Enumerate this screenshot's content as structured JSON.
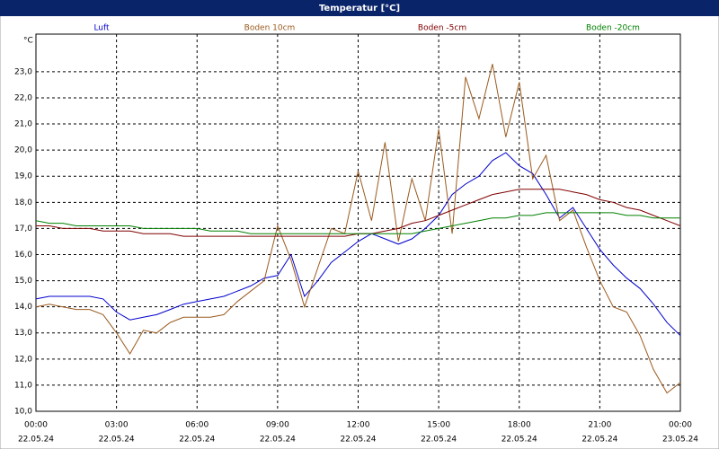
{
  "chart_data": {
    "type": "line",
    "title": "Temperatur [°C]",
    "y_unit": "°C",
    "x": [
      0,
      0.5,
      1,
      1.5,
      2,
      2.5,
      3,
      3.5,
      4,
      4.5,
      5,
      5.5,
      6,
      6.5,
      7,
      7.5,
      8,
      8.5,
      9,
      9.5,
      10,
      10.5,
      11,
      11.5,
      12,
      12.5,
      13,
      13.5,
      14,
      14.5,
      15,
      15.5,
      16,
      16.5,
      17,
      17.5,
      18,
      18.5,
      19,
      19.5,
      20,
      20.5,
      21,
      21.5,
      22,
      22.5,
      23,
      23.5,
      24
    ],
    "xlim": [
      0,
      24
    ],
    "xticks": [
      {
        "value": 0,
        "label": "00:00"
      },
      {
        "value": 3,
        "label": "03:00"
      },
      {
        "value": 6,
        "label": "06:00"
      },
      {
        "value": 9,
        "label": "09:00"
      },
      {
        "value": 12,
        "label": "12:00"
      },
      {
        "value": 15,
        "label": "15:00"
      },
      {
        "value": 18,
        "label": "18:00"
      },
      {
        "value": 21,
        "label": "21:00"
      },
      {
        "value": 24,
        "label": "00:00"
      }
    ],
    "xtick_dates": [
      "22.05.24",
      "22.05.24",
      "22.05.24",
      "22.05.24",
      "22.05.24",
      "22.05.24",
      "22.05.24",
      "22.05.24",
      "23.05.24"
    ],
    "ylim": [
      10,
      24.44
    ],
    "yticks": [
      {
        "value": 10,
        "label": "10,0"
      },
      {
        "value": 11,
        "label": "11,0"
      },
      {
        "value": 12,
        "label": "12,0"
      },
      {
        "value": 13,
        "label": "13,0"
      },
      {
        "value": 14,
        "label": "14,0"
      },
      {
        "value": 15,
        "label": "15,0"
      },
      {
        "value": 16,
        "label": "16,0"
      },
      {
        "value": 17,
        "label": "17,0"
      },
      {
        "value": 18,
        "label": "18,0"
      },
      {
        "value": 19,
        "label": "19,0"
      },
      {
        "value": 20,
        "label": "20,0"
      },
      {
        "value": 21,
        "label": "21,0"
      },
      {
        "value": 22,
        "label": "22,0"
      },
      {
        "value": 23,
        "label": "23,0"
      }
    ],
    "grid": true,
    "series": [
      {
        "name": "Luft",
        "color": "#0000cc",
        "values": [
          14.3,
          14.4,
          14.4,
          14.4,
          14.4,
          14.3,
          13.8,
          13.5,
          13.6,
          13.7,
          13.9,
          14.1,
          14.2,
          14.3,
          14.4,
          14.6,
          14.8,
          15.1,
          15.2,
          16.0,
          14.4,
          15.0,
          15.7,
          16.1,
          16.5,
          16.8,
          16.6,
          16.4,
          16.6,
          17.0,
          17.5,
          18.3,
          18.7,
          19.0,
          19.6,
          19.9,
          19.4,
          19.1,
          18.3,
          17.4,
          17.8,
          17.0,
          16.2,
          15.6,
          15.1,
          14.7,
          14.1,
          13.4,
          12.9
        ]
      },
      {
        "name": "Boden 10cm",
        "color": "#9a5a1e",
        "values": [
          14.0,
          14.1,
          14.0,
          13.9,
          13.9,
          13.7,
          13.0,
          12.2,
          13.1,
          13.0,
          13.4,
          13.6,
          13.6,
          13.6,
          13.7,
          14.2,
          14.6,
          15.0,
          17.1,
          15.8,
          14.0,
          15.5,
          17.0,
          16.8,
          19.2,
          17.3,
          20.3,
          16.5,
          18.9,
          17.3,
          20.8,
          16.8,
          22.8,
          21.2,
          23.3,
          20.5,
          22.6,
          18.9,
          19.8,
          17.3,
          17.7,
          16.3,
          15.0,
          14.0,
          13.8,
          12.9,
          11.6,
          10.7,
          11.1
        ]
      },
      {
        "name": "Boden -5cm",
        "color": "#800000",
        "values": [
          17.1,
          17.1,
          17.0,
          17.0,
          17.0,
          16.9,
          16.9,
          16.9,
          16.8,
          16.8,
          16.8,
          16.7,
          16.7,
          16.7,
          16.7,
          16.7,
          16.7,
          16.7,
          16.7,
          16.7,
          16.7,
          16.7,
          16.7,
          16.7,
          16.8,
          16.8,
          16.9,
          17.0,
          17.2,
          17.3,
          17.5,
          17.7,
          17.9,
          18.1,
          18.3,
          18.4,
          18.5,
          18.5,
          18.5,
          18.5,
          18.4,
          18.3,
          18.1,
          18.0,
          17.8,
          17.7,
          17.5,
          17.3,
          17.1
        ]
      },
      {
        "name": "Boden -20cm",
        "color": "#008000",
        "values": [
          17.3,
          17.2,
          17.2,
          17.1,
          17.1,
          17.1,
          17.1,
          17.1,
          17.0,
          17.0,
          17.0,
          17.0,
          17.0,
          16.9,
          16.9,
          16.9,
          16.8,
          16.8,
          16.8,
          16.8,
          16.8,
          16.8,
          16.8,
          16.8,
          16.8,
          16.8,
          16.8,
          16.8,
          16.8,
          16.9,
          17.0,
          17.1,
          17.2,
          17.3,
          17.4,
          17.4,
          17.5,
          17.5,
          17.6,
          17.6,
          17.6,
          17.6,
          17.6,
          17.6,
          17.5,
          17.5,
          17.4,
          17.4,
          17.4
        ]
      }
    ]
  }
}
